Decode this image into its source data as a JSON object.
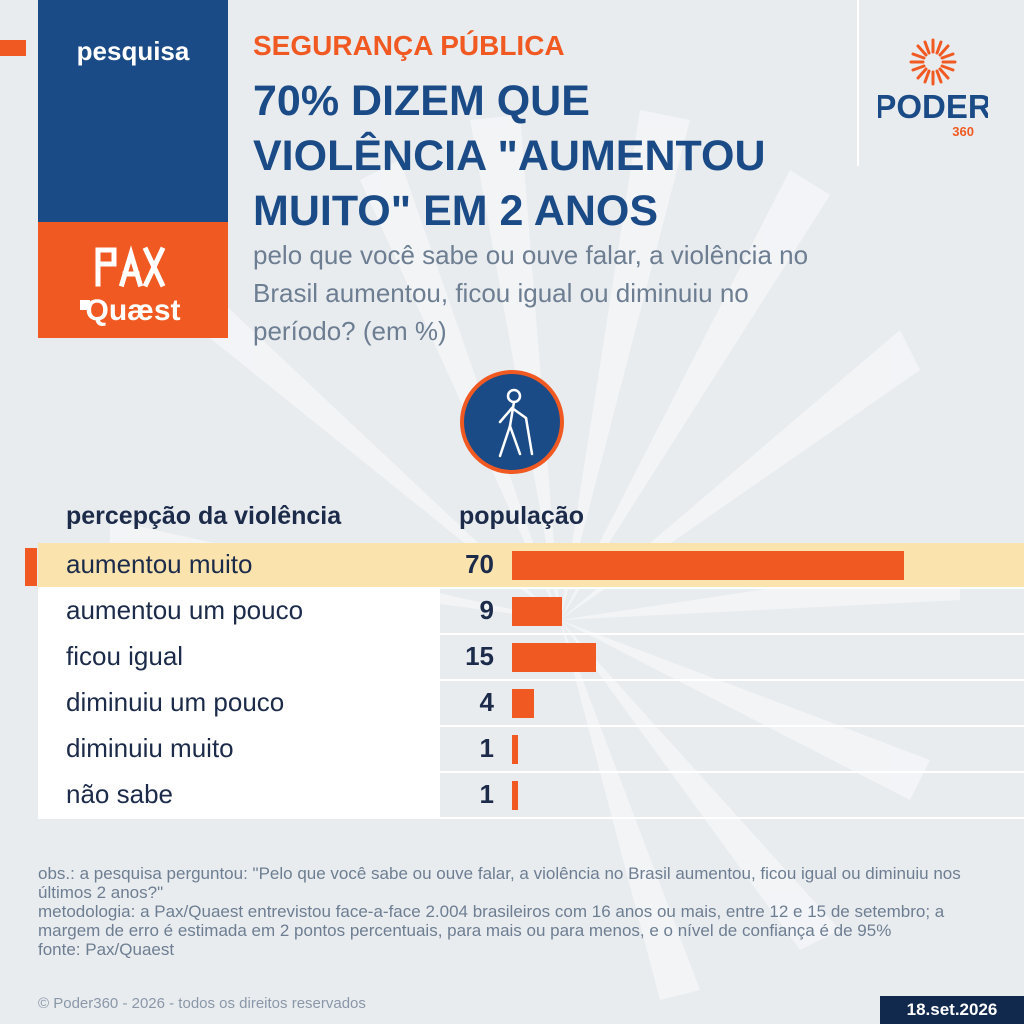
{
  "brand": {
    "tag": "pesquisa",
    "partner_logo": "Pax/Quaest logo",
    "publisher_logo": "Poder360 logo"
  },
  "header": {
    "kicker": "SEGURANÇA PÚBLICA",
    "headline": "70% DIZEM QUE VIOLÊNCIA \"AUMENTOU MUITO\" EM 2 ANOS",
    "subtitle": "pelo que você sabe ou ouve falar, a violência no Brasil aumentou, ficou igual ou diminuiu no período? (em %)"
  },
  "emblem_icon": "person-with-cane-icon",
  "colors": {
    "accent": "#f05a22",
    "brand_blue": "#1b4b86",
    "highlight": "#fbe3ae",
    "background": "#e9ecef"
  },
  "chart_data": {
    "type": "bar",
    "orientation": "horizontal",
    "column_headers": {
      "category": "percepção da violência",
      "value": "população"
    },
    "categories": [
      "aumentou muito",
      "aumentou um pouco",
      "ficou igual",
      "diminuiu um pouco",
      "diminuiu muito",
      "não sabe"
    ],
    "values": [
      70,
      9,
      15,
      4,
      1,
      1
    ],
    "unit": "%",
    "highlighted_category": "aumentou muito",
    "xlim": [
      0,
      100
    ],
    "grid": false
  },
  "notes": {
    "obs": "obs.: a pesquisa perguntou: \"Pelo que você sabe ou ouve falar, a violência no Brasil aumentou, ficou igual ou diminuiu nos últimos 2 anos?\"",
    "methodology": "metodologia: a Pax/Quaest entrevistou face-a-face 2.004 brasileiros com 16 anos ou mais, entre 12 e 15 de setembro; a margem de erro é estimada em 2 pontos percentuais, para mais ou para menos, e o nível de confiança é de 95%",
    "source": "fonte: Pax/Quaest"
  },
  "footer": {
    "copyright": "© Poder360 - 2026 - todos os direitos reservados",
    "date": "18.set.2026"
  }
}
